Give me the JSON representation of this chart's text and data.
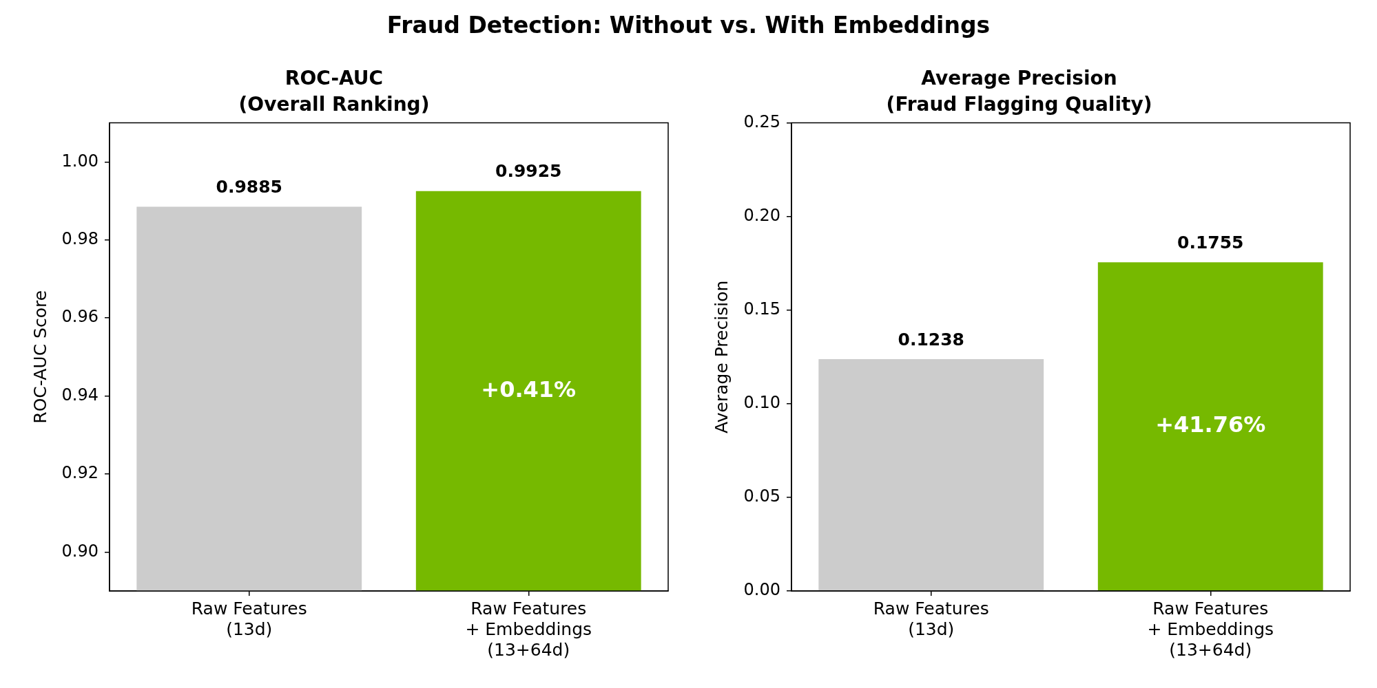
{
  "chart_data": [
    {
      "type": "bar",
      "title": "ROC-AUC\n(Overall Ranking)",
      "ylabel": "ROC-AUC Score",
      "categories": [
        "Raw Features\n(13d)",
        "Raw Features\n+ Embeddings\n(13+64d)"
      ],
      "values": [
        0.9885,
        0.9925
      ],
      "colors": [
        "#cccccc",
        "#76b900"
      ],
      "ylim": [
        0.89,
        1.01
      ],
      "yticks": [
        {
          "value": 0.9,
          "label": "0.90"
        },
        0.92,
        0.94,
        0.96,
        0.98,
        {
          "value": 1,
          "label": "1.00"
        }
      ],
      "data_labels": true,
      "annotations": [
        "Fraud Detection: Without vs. With Embeddings",
        "+0.41%"
      ]
    },
    {
      "type": "bar",
      "title": "Average Precision\n(Fraud Flagging Quality)",
      "ylabel": "Average Precision",
      "categories": [
        "Raw Features\n(13d)",
        "Raw Features\n+ Embeddings\n(13+64d)"
      ],
      "values": [
        0.1238,
        0.1755
      ],
      "colors": [
        "#cccccc",
        "#76b900"
      ],
      "ylim": [
        0,
        0.25
      ],
      "yticks": [
        {
          "value": 0,
          "label": "0.00"
        },
        0.05,
        {
          "value": 0.1,
          "label": "0.10"
        },
        0.15,
        {
          "value": 0.2,
          "label": "0.20"
        },
        0.25
      ],
      "data_labels": true,
      "annotations": [
        "+41.76%"
      ]
    }
  ]
}
